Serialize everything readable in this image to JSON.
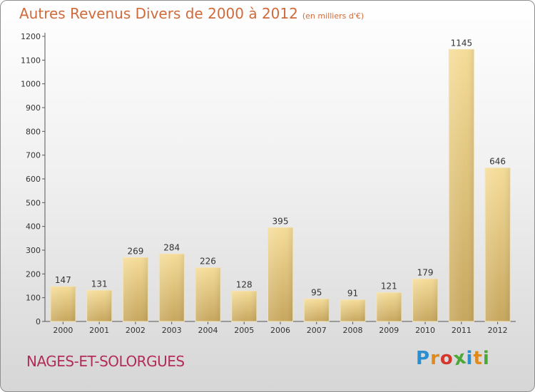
{
  "title": "Autres Revenus Divers de 2000 à 2012",
  "unit": "(en milliers d'€)",
  "commune": "NAGES-ET-SOLORGUES",
  "logo": {
    "letters": [
      "P",
      "r",
      "o",
      "x",
      "i",
      "t",
      "i"
    ],
    "colors": [
      "#2a8fd1",
      "#e08a1e",
      "#d4372b",
      "#4aa836",
      "#2a8fd1",
      "#e08a1e",
      "#4aa836"
    ]
  },
  "chart_data": {
    "type": "bar",
    "categories": [
      "2000",
      "2001",
      "2002",
      "2003",
      "2004",
      "2005",
      "2006",
      "2007",
      "2008",
      "2009",
      "2010",
      "2011",
      "2012"
    ],
    "values": [
      147,
      131,
      269,
      284,
      226,
      128,
      395,
      95,
      91,
      121,
      179,
      1145,
      646
    ],
    "yticks": [
      0,
      100,
      200,
      300,
      400,
      500,
      600,
      700,
      800,
      900,
      1000,
      1100,
      1200
    ],
    "ylim": [
      0,
      1200
    ],
    "bar_color": "#e8c878",
    "grid": false,
    "xlabel": "",
    "ylabel": ""
  }
}
